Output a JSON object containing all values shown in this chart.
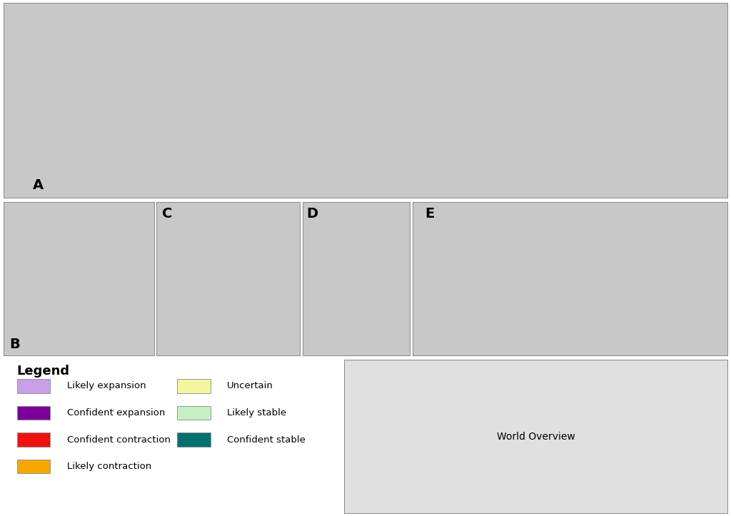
{
  "legend_items": [
    {
      "label": "Likely expansion",
      "color": "#c9a0e8"
    },
    {
      "label": "Confident expansion",
      "color": "#7b0099"
    },
    {
      "label": "Confident contraction",
      "color": "#ee1111"
    },
    {
      "label": "Likely contraction",
      "color": "#f5a800"
    },
    {
      "label": "Uncertain",
      "color": "#f5f5a0"
    },
    {
      "label": "Likely stable",
      "color": "#c5f0c5"
    },
    {
      "label": "Confident stable",
      "color": "#007070"
    }
  ],
  "panel_label_fontsize": 14,
  "label_fontsize": 9,
  "legend_title": "Legend",
  "legend_title_fontsize": 13,
  "land_color": "#c8c8c8",
  "water_color": "#ffffff",
  "border_color": "#aaaaaa",
  "figure_bg": "#ffffff"
}
